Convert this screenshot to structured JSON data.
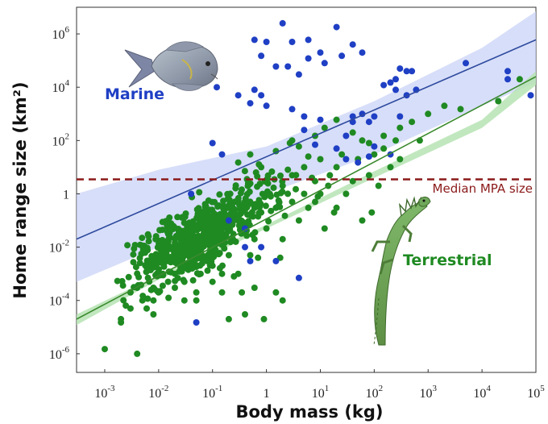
{
  "chart_data": {
    "type": "scatter",
    "xlabel": "Body mass (kg)",
    "ylabel": "Home range size (km²)",
    "xscale": "log",
    "yscale": "log",
    "xlim": [
      0.0003,
      100000
    ],
    "ylim": [
      2e-07,
      10000000
    ],
    "x_ticks": [
      {
        "base": "10",
        "exp": "-3",
        "value": 0.001
      },
      {
        "base": "10",
        "exp": "-2",
        "value": 0.01
      },
      {
        "base": "10",
        "exp": "-1",
        "value": 0.1
      },
      {
        "base": "1",
        "exp": "",
        "value": 1
      },
      {
        "base": "10",
        "exp": "1",
        "value": 10
      },
      {
        "base": "10",
        "exp": "2",
        "value": 100
      },
      {
        "base": "10",
        "exp": "3",
        "value": 1000
      },
      {
        "base": "10",
        "exp": "4",
        "value": 10000
      },
      {
        "base": "10",
        "exp": "5",
        "value": 100000
      }
    ],
    "y_ticks": [
      {
        "base": "10",
        "exp": "-6",
        "value": 1e-06
      },
      {
        "base": "10",
        "exp": "-4",
        "value": 0.0001
      },
      {
        "base": "10",
        "exp": "-2",
        "value": 0.01
      },
      {
        "base": "1",
        "exp": "",
        "value": 1
      },
      {
        "base": "10",
        "exp": "2",
        "value": 100
      },
      {
        "base": "10",
        "exp": "4",
        "value": 10000
      },
      {
        "base": "10",
        "exp": "6",
        "value": 1000000
      }
    ],
    "reference_line": {
      "label": "Median MPA size",
      "y": 3.5,
      "color": "#8b1a1a",
      "style": "dashed"
    },
    "series": [
      {
        "name": "Marine",
        "color": "#1f3fc4",
        "fit_color": "#2e4a9e",
        "band_color": "#c9d3f7",
        "fit": {
          "x0": 0.0003,
          "y0": 0.02,
          "x1": 100000,
          "y1": 600000
        },
        "band": [
          {
            "x": 0.0003,
            "lo": 0.0005,
            "hi": 1
          },
          {
            "x": 0.01,
            "lo": 0.01,
            "hi": 8
          },
          {
            "x": 1,
            "lo": 1,
            "hi": 60
          },
          {
            "x": 100,
            "lo": 30,
            "hi": 3000
          },
          {
            "x": 10000,
            "lo": 2000,
            "hi": 300000
          },
          {
            "x": 100000,
            "lo": 15000,
            "hi": 7000000
          }
        ],
        "points": [
          [
            2,
            2500000
          ],
          [
            20,
            1800000
          ],
          [
            0.6,
            600000
          ],
          [
            1,
            500000
          ],
          [
            3,
            500000
          ],
          [
            6,
            600000
          ],
          [
            0.8,
            150000
          ],
          [
            1.5,
            60000
          ],
          [
            2.5,
            60000
          ],
          [
            4,
            30000
          ],
          [
            6,
            120000
          ],
          [
            10,
            200000
          ],
          [
            12,
            80000
          ],
          [
            25,
            150000
          ],
          [
            40,
            400000
          ],
          [
            60,
            200000
          ],
          [
            0.12,
            10000
          ],
          [
            0.3,
            5000
          ],
          [
            0.6,
            8000
          ],
          [
            0.8,
            5000
          ],
          [
            0.5,
            2500
          ],
          [
            1,
            2000
          ],
          [
            3,
            1500
          ],
          [
            5,
            800
          ],
          [
            10,
            600
          ],
          [
            40,
            800
          ],
          [
            60,
            1000
          ],
          [
            80,
            500
          ],
          [
            100,
            800
          ],
          [
            150,
            12000
          ],
          [
            200,
            15000
          ],
          [
            250,
            20000
          ],
          [
            300,
            50000
          ],
          [
            400,
            40000
          ],
          [
            500,
            40000
          ],
          [
            400,
            5000
          ],
          [
            250,
            8000
          ],
          [
            600,
            8000
          ],
          [
            5000,
            80000
          ],
          [
            30000,
            20000
          ],
          [
            30000,
            40000
          ],
          [
            80000,
            5000
          ],
          [
            0.15,
            30
          ],
          [
            0.1,
            80
          ],
          [
            0.04,
            1
          ],
          [
            0.2,
            0.1
          ],
          [
            0.4,
            0.01
          ],
          [
            0.4,
            0.05
          ],
          [
            0.8,
            0.01
          ],
          [
            4,
            0.0007
          ],
          [
            0.05,
            1.5e-05
          ],
          [
            20,
            50
          ],
          [
            30,
            20
          ],
          [
            50,
            15
          ],
          [
            80,
            25
          ],
          [
            200,
            30
          ],
          [
            100,
            60
          ],
          [
            8,
            70
          ],
          [
            5,
            250
          ],
          [
            30,
            150
          ],
          [
            40,
            500
          ],
          [
            300,
            800
          ],
          [
            0.5,
            0.003
          ],
          [
            1.5,
            0.003
          ]
        ],
        "label": "Marine"
      },
      {
        "name": "Terrestrial",
        "color": "#1f8a22",
        "fit_color": "#3a8a2e",
        "band_color": "#b6e3b3",
        "fit": {
          "x0": 0.0003,
          "y0": 2e-05,
          "x1": 100000,
          "y1": 25000
        },
        "band": [
          {
            "x": 0.0003,
            "lo": 1.2e-05,
            "hi": 3e-05
          },
          {
            "x": 0.01,
            "lo": 0.0006,
            "hi": 0.0009
          },
          {
            "x": 1,
            "lo": 0.05,
            "hi": 0.07
          },
          {
            "x": 100,
            "lo": 4,
            "hi": 7
          },
          {
            "x": 10000,
            "lo": 300,
            "hi": 600
          },
          {
            "x": 100000,
            "lo": 12000,
            "hi": 40000
          }
        ],
        "points": [
          [
            0.001,
            1.5e-06
          ],
          [
            0.004,
            1e-06
          ],
          [
            0.002,
            1.5e-05
          ],
          [
            0.002,
            2e-05
          ],
          [
            0.003,
            5e-05
          ],
          [
            0.005,
            0.0001
          ],
          [
            0.004,
            0.0003
          ],
          [
            0.006,
            5e-05
          ],
          [
            0.008,
            0.0001
          ],
          [
            0.008,
            0.0003
          ],
          [
            0.01,
            0.0002
          ],
          [
            0.012,
            0.001
          ],
          [
            0.015,
            0.0005
          ],
          [
            0.02,
            0.0003
          ],
          [
            0.02,
            0.001
          ],
          [
            0.025,
            0.003
          ],
          [
            0.03,
            0.0001
          ],
          [
            0.03,
            0.0005
          ],
          [
            0.04,
            0.002
          ],
          [
            0.05,
            0.0002
          ],
          [
            0.06,
            0.001
          ],
          [
            0.06,
            0.008
          ],
          [
            0.08,
            0.003
          ],
          [
            0.1,
            0.0005
          ],
          [
            0.1,
            0.002
          ],
          [
            0.15,
            0.001
          ],
          [
            0.2,
            0.005
          ],
          [
            0.3,
            0.001
          ],
          [
            0.5,
            0.005
          ],
          [
            0.6,
            0.0003
          ],
          [
            0.015,
            0.01
          ],
          [
            0.02,
            0.02
          ],
          [
            0.04,
            0.05
          ],
          [
            0.05,
            0.01
          ],
          [
            0.08,
            0.03
          ],
          [
            0.1,
            0.1
          ],
          [
            0.1,
            0.01
          ],
          [
            0.15,
            0.05
          ],
          [
            0.2,
            0.3
          ],
          [
            0.3,
            0.1
          ],
          [
            0.4,
            0.05
          ],
          [
            0.5,
            0.5
          ],
          [
            0.6,
            0.02
          ],
          [
            0.8,
            0.2
          ],
          [
            1,
            0.05
          ],
          [
            1,
            1
          ],
          [
            1.5,
            0.3
          ],
          [
            2,
            2
          ],
          [
            2,
            0.02
          ],
          [
            3,
            0.5
          ],
          [
            3,
            5
          ],
          [
            4,
            0.1
          ],
          [
            5,
            1
          ],
          [
            5,
            10
          ],
          [
            6,
            0.3
          ],
          [
            8,
            3
          ],
          [
            8,
            0.5
          ],
          [
            10,
            20
          ],
          [
            10,
            1
          ],
          [
            12,
            0.05
          ],
          [
            15,
            5
          ],
          [
            20,
            10
          ],
          [
            20,
            0.3
          ],
          [
            25,
            30
          ],
          [
            30,
            1
          ],
          [
            40,
            3
          ],
          [
            50,
            20
          ],
          [
            60,
            100
          ],
          [
            80,
            5
          ],
          [
            100,
            30
          ],
          [
            120,
            2
          ],
          [
            150,
            50
          ],
          [
            200,
            10
          ],
          [
            250,
            100
          ],
          [
            300,
            20
          ],
          [
            0.3,
            15
          ],
          [
            0.5,
            30
          ],
          [
            0.8,
            10
          ],
          [
            1.5,
            40
          ],
          [
            2.5,
            8
          ],
          [
            4,
            60
          ],
          [
            6,
            25
          ],
          [
            3,
            100
          ],
          [
            8,
            150
          ],
          [
            12,
            300
          ],
          [
            20,
            600
          ],
          [
            40,
            200
          ],
          [
            80,
            80
          ],
          [
            150,
            150
          ],
          [
            300,
            300
          ],
          [
            500,
            500
          ],
          [
            700,
            100
          ],
          [
            1000,
            1000
          ],
          [
            2000,
            2000
          ],
          [
            4000,
            1500
          ],
          [
            20000,
            3000
          ],
          [
            50000,
            20000
          ],
          [
            0.2,
            2e-05
          ],
          [
            0.4,
            3e-05
          ],
          [
            1.5,
            0.0002
          ],
          [
            2,
            0.0001
          ],
          [
            0.05,
            0.0001
          ],
          [
            0.008,
            3e-05
          ],
          [
            0.003,
            0.0002
          ],
          [
            0.6,
            0.3
          ],
          [
            1.2,
            0.8
          ],
          [
            2.2,
            0.15
          ],
          [
            3.5,
            1.5
          ],
          [
            7,
            4
          ],
          [
            9,
            0.8
          ],
          [
            14,
            2
          ],
          [
            18,
            0.2
          ],
          [
            0.7,
            0.004
          ],
          [
            1.8,
            0.004
          ],
          [
            0.35,
            0.0002
          ],
          [
            0.9,
            2e-05
          ],
          [
            60,
            0.1
          ],
          [
            90,
            0.2
          ],
          [
            0.15,
            0.0002
          ],
          [
            0.25,
            0.0008
          ]
        ],
        "label": "Terrestrial"
      }
    ],
    "scatter_seed": 7,
    "scatter_fill_count": 620
  }
}
